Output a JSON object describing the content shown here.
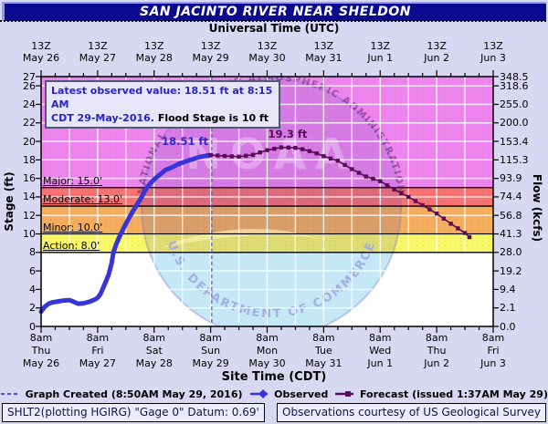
{
  "title": "SAN JACINTO RIVER NEAR SHELDON",
  "top_axis": {
    "label": "Universal Time (UTC)",
    "hour_label": "13Z",
    "dates": [
      "May 26",
      "May 27",
      "May 28",
      "May 29",
      "May 30",
      "May 31",
      "Jun 1",
      "Jun 2",
      "Jun 3"
    ]
  },
  "bottom_axis": {
    "label": "Site Time (CDT)",
    "hour_label": "8am",
    "days": [
      "Thu",
      "Fri",
      "Sat",
      "Sun",
      "Mon",
      "Tue",
      "Wed",
      "Thu",
      "Fri"
    ],
    "dates": [
      "May 26",
      "May 27",
      "May 28",
      "May 29",
      "May 30",
      "May 31",
      "Jun 1",
      "Jun 2",
      "Jun 3"
    ]
  },
  "info_box": {
    "line1": "Latest observed value: 18.51 ft at 8:15 AM",
    "line2_blue": "CDT 29-May-2016.",
    "line2_black": " Flood Stage is 10 ft"
  },
  "annotations": {
    "observed_latest": "18.51 ft",
    "forecast_crest": "19.3 ft"
  },
  "legend": {
    "items": [
      {
        "label": "Graph Created (8:50AM May 29, 2016)",
        "type": "dashed-line",
        "color": "#5050e8"
      },
      {
        "label": "Observed",
        "type": "line-diamond",
        "color": "#3535d8"
      },
      {
        "label": "Forecast (issued 1:37AM May 29)",
        "type": "line-square",
        "color": "#5a0b5a"
      }
    ]
  },
  "footer": {
    "left": "SHLT2(plotting HGIRG) \"Gage 0\" Datum: 0.69'",
    "right": "Observations courtesy of US Geological Survey"
  },
  "watermark": {
    "acronym": "NOAA",
    "top_text": "NATIONAL OCEANIC AND ATMOSPHERIC ADMINISTRATION",
    "bottom_text": "U.S. DEPARTMENT OF COMMERCE"
  },
  "chart_data": {
    "type": "line",
    "title": "SAN JACINTO RIVER NEAR SHELDON",
    "xlabel_top": "Universal Time (UTC)",
    "xlabel_bottom": "Site Time (CDT)",
    "ylabel_left": "Stage (ft)",
    "ylabel_right": "Flow (kcfs)",
    "x_unit": "days since May 26 08:00 CDT",
    "x_range_days": [
      0,
      8
    ],
    "stage_range": [
      0,
      27
    ],
    "gridline_every_days": 0.5,
    "major_tick_every_days": 1,
    "minor_tick_every_days": 0.25,
    "left_tick_stages": [
      27,
      26,
      24,
      22,
      20,
      18,
      16,
      14,
      12,
      10,
      8,
      6,
      4,
      2,
      0
    ],
    "right_tick_flows": [
      "348.5",
      "318.6",
      "255.0",
      "200.0",
      "153.4",
      "115.3",
      "93.9",
      "74.4",
      "56.8",
      "41.3",
      "28.0",
      "19.2",
      "9.4",
      "2.1",
      "0.0"
    ],
    "flood_categories": [
      {
        "name": "Major",
        "stage": 15.0,
        "label": "Major: 15.0'",
        "color": "#ee85ee"
      },
      {
        "name": "Moderate",
        "stage": 13.0,
        "label": "Moderate: 13.0'",
        "color": "#f87272"
      },
      {
        "name": "Minor",
        "stage": 10.0,
        "label": "Minor: 10.0'",
        "color": "#f4ae5e"
      },
      {
        "name": "Action",
        "stage": 8.0,
        "label": "Action: 8.0'",
        "color": "#f8f868"
      }
    ],
    "flood_stage_ft": 10,
    "current_time_days": 3.02,
    "series": [
      {
        "name": "Observed",
        "color": "#3535d8",
        "points": [
          [
            0.0,
            1.6
          ],
          [
            0.06,
            2.1
          ],
          [
            0.13,
            2.45
          ],
          [
            0.2,
            2.6
          ],
          [
            0.3,
            2.7
          ],
          [
            0.4,
            2.8
          ],
          [
            0.5,
            2.85
          ],
          [
            0.58,
            2.65
          ],
          [
            0.66,
            2.45
          ],
          [
            0.75,
            2.5
          ],
          [
            0.85,
            2.65
          ],
          [
            0.95,
            2.9
          ],
          [
            1.0,
            3.1
          ],
          [
            1.05,
            3.5
          ],
          [
            1.1,
            4.2
          ],
          [
            1.15,
            4.9
          ],
          [
            1.2,
            5.7
          ],
          [
            1.25,
            6.9
          ],
          [
            1.28,
            8.0
          ],
          [
            1.33,
            8.9
          ],
          [
            1.41,
            10.0
          ],
          [
            1.5,
            11.1
          ],
          [
            1.6,
            12.2
          ],
          [
            1.68,
            13.0
          ],
          [
            1.78,
            14.0
          ],
          [
            1.87,
            15.0
          ],
          [
            2.0,
            15.9
          ],
          [
            2.1,
            16.4
          ],
          [
            2.2,
            16.9
          ],
          [
            2.32,
            17.2
          ],
          [
            2.45,
            17.6
          ],
          [
            2.64,
            18.0
          ],
          [
            2.8,
            18.3
          ],
          [
            2.92,
            18.45
          ],
          [
            3.01,
            18.51
          ]
        ]
      },
      {
        "name": "Forecast",
        "color": "#5a0b5a",
        "points": [
          [
            3.0,
            18.51
          ],
          [
            3.125,
            18.47
          ],
          [
            3.25,
            18.42
          ],
          [
            3.375,
            18.38
          ],
          [
            3.5,
            18.35
          ],
          [
            3.625,
            18.45
          ],
          [
            3.75,
            18.55
          ],
          [
            3.875,
            18.8
          ],
          [
            4.0,
            19.05
          ],
          [
            4.125,
            19.2
          ],
          [
            4.25,
            19.35
          ],
          [
            4.375,
            19.33
          ],
          [
            4.5,
            19.3
          ],
          [
            4.625,
            19.15
          ],
          [
            4.75,
            18.95
          ],
          [
            4.875,
            18.7
          ],
          [
            5.0,
            18.4
          ],
          [
            5.125,
            18.15
          ],
          [
            5.25,
            17.9
          ],
          [
            5.375,
            17.45
          ],
          [
            5.5,
            17.0
          ],
          [
            5.625,
            16.6
          ],
          [
            5.75,
            16.2
          ],
          [
            5.875,
            15.95
          ],
          [
            6.0,
            15.7
          ],
          [
            6.125,
            15.25
          ],
          [
            6.25,
            14.8
          ],
          [
            6.375,
            14.4
          ],
          [
            6.5,
            14.0
          ],
          [
            6.625,
            13.55
          ],
          [
            6.75,
            13.1
          ],
          [
            6.875,
            12.65
          ],
          [
            7.0,
            12.2
          ],
          [
            7.125,
            11.65
          ],
          [
            7.25,
            11.1
          ],
          [
            7.375,
            10.6
          ],
          [
            7.5,
            10.1
          ],
          [
            7.58,
            9.65
          ]
        ]
      }
    ]
  }
}
